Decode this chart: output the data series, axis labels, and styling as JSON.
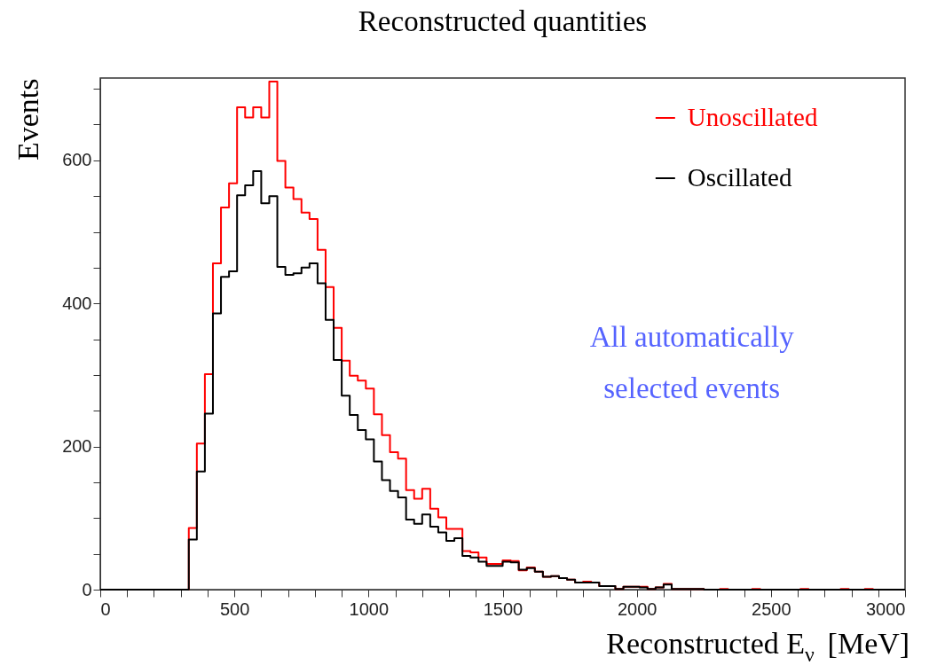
{
  "chart_data": {
    "type": "histogram",
    "title": "Reconstructed quantities",
    "xlabel": "Reconstructed E$_{ν}$ [MeV]",
    "ylabel": "Events",
    "bins": [
      0,
      30,
      60,
      90,
      120,
      150,
      180,
      210,
      240,
      270,
      300,
      330,
      360,
      390,
      420,
      450,
      480,
      510,
      540,
      570,
      600,
      630,
      660,
      690,
      720,
      750,
      780,
      810,
      840,
      870,
      900,
      930,
      960,
      990,
      1020,
      1050,
      1080,
      1110,
      1140,
      1170,
      1200,
      1230,
      1260,
      1290,
      1320,
      1350,
      1380,
      1410,
      1440,
      1470,
      1500,
      1530,
      1560,
      1590,
      1620,
      1650,
      1680,
      1710,
      1740,
      1770,
      1800,
      1830,
      1860,
      1890,
      1920,
      1950,
      1980,
      2010,
      2040,
      2070,
      2100,
      2130,
      2160,
      2190,
      2220,
      2250,
      2280,
      2310,
      2340,
      2370,
      2400,
      2430,
      2460,
      2490,
      2520,
      2550,
      2580,
      2610,
      2640,
      2670,
      2700,
      2730,
      2760,
      2790,
      2820,
      2850,
      2880,
      2910,
      2940,
      2970,
      3000
    ],
    "series": [
      {
        "name": "Unoscillated",
        "color": "#ff0000",
        "values": [
          0,
          0,
          0,
          0,
          0,
          0,
          0,
          0,
          0,
          0,
          0,
          86,
          204,
          301,
          456,
          534,
          568,
          674,
          660,
          674,
          660,
          710,
          599,
          562,
          546,
          527,
          518,
          475,
          423,
          366,
          320,
          299,
          292,
          281,
          245,
          216,
          192,
          183,
          139,
          127,
          141,
          113,
          101,
          85,
          85,
          54,
          52,
          45,
          36,
          36,
          41,
          40,
          27,
          31,
          25,
          18,
          19,
          16,
          14,
          10,
          11,
          10,
          5,
          5,
          1,
          4,
          4,
          4,
          1,
          3,
          8,
          1,
          1,
          1,
          1,
          0,
          0,
          1,
          0,
          0,
          0,
          1,
          0,
          0,
          0,
          0,
          0,
          1,
          0,
          0,
          0,
          0,
          1,
          0,
          0,
          1,
          0,
          0,
          0,
          0
        ]
      },
      {
        "name": "Oscillated",
        "color": "#000000",
        "values": [
          0,
          0,
          0,
          0,
          0,
          0,
          0,
          0,
          0,
          0,
          0,
          70,
          165,
          246,
          386,
          437,
          445,
          551,
          565,
          585,
          540,
          550,
          451,
          440,
          442,
          450,
          456,
          428,
          377,
          321,
          271,
          244,
          223,
          210,
          179,
          153,
          138,
          129,
          98,
          92,
          105,
          88,
          80,
          68,
          72,
          47,
          45,
          39,
          33,
          33,
          39,
          38,
          28,
          30,
          25,
          18,
          19,
          16,
          14,
          10,
          10,
          10,
          5,
          5,
          1,
          4,
          4,
          3,
          1,
          3,
          7,
          1,
          1,
          1,
          1,
          0,
          0,
          0,
          0,
          0,
          0,
          0,
          0,
          0,
          0,
          0,
          0,
          0,
          0,
          0,
          0,
          0,
          0,
          0,
          0,
          0,
          0,
          0,
          0,
          0
        ]
      }
    ],
    "xlim": [
      0,
      3000
    ],
    "xticks": [
      0,
      {
        "value": 100,
        "label": null
      },
      {
        "value": 200,
        "label": null
      },
      {
        "value": 300,
        "label": null
      },
      {
        "value": 400,
        "label": null
      },
      500,
      {
        "value": 600,
        "label": null
      },
      {
        "value": 700,
        "label": null
      },
      {
        "value": 800,
        "label": null
      },
      {
        "value": 900,
        "label": null
      },
      1000,
      {
        "value": 1100,
        "label": null
      },
      {
        "value": 1200,
        "label": null
      },
      {
        "value": 1300,
        "label": null
      },
      {
        "value": 1400,
        "label": null
      },
      1500,
      {
        "value": 1600,
        "label": null
      },
      {
        "value": 1700,
        "label": null
      },
      {
        "value": 1800,
        "label": null
      },
      {
        "value": 1900,
        "label": null
      },
      2000,
      {
        "value": 2100,
        "label": null
      },
      {
        "value": 2200,
        "label": null
      },
      {
        "value": 2300,
        "label": null
      },
      {
        "value": 2400,
        "label": null
      },
      2500,
      {
        "value": 2600,
        "label": null
      },
      {
        "value": 2700,
        "label": null
      },
      {
        "value": 2800,
        "label": null
      },
      {
        "value": 2900,
        "label": null
      },
      3000
    ],
    "ylim": [
      0,
      715
    ],
    "yticks": [
      0,
      {
        "value": 50,
        "label": null
      },
      {
        "value": 100,
        "label": null
      },
      {
        "value": 150,
        "label": null
      },
      200,
      {
        "value": 250,
        "label": null
      },
      {
        "value": 300,
        "label": null
      },
      {
        "value": 350,
        "label": null
      },
      400,
      {
        "value": 450,
        "label": null
      },
      {
        "value": 500,
        "label": null
      },
      {
        "value": 550,
        "label": null
      },
      600,
      {
        "value": 650,
        "label": null
      },
      {
        "value": 700,
        "label": null
      }
    ],
    "legend": "top right",
    "annotations": [
      "All automatically\nselected events"
    ]
  }
}
